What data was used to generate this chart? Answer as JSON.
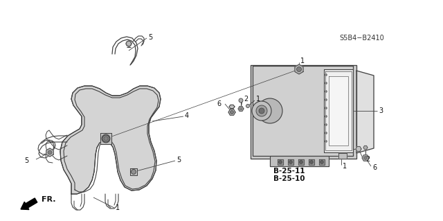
{
  "background_color": "#ffffff",
  "line_color": "#3a3a3a",
  "part_number_label": "S5B4−B2410",
  "direction_label": "FR.",
  "ref_label_1": "B-25-10",
  "ref_label_2": "B-25-11",
  "fig_width": 6.4,
  "fig_height": 3.19,
  "dpi": 100,
  "bracket_color": "#c8c8c8",
  "modulator_fill": "#d8d8d8",
  "modulator_face_fill": "#e8e8e8",
  "bolt_fill": "#b0b0b0",
  "dark_fill": "#606060"
}
